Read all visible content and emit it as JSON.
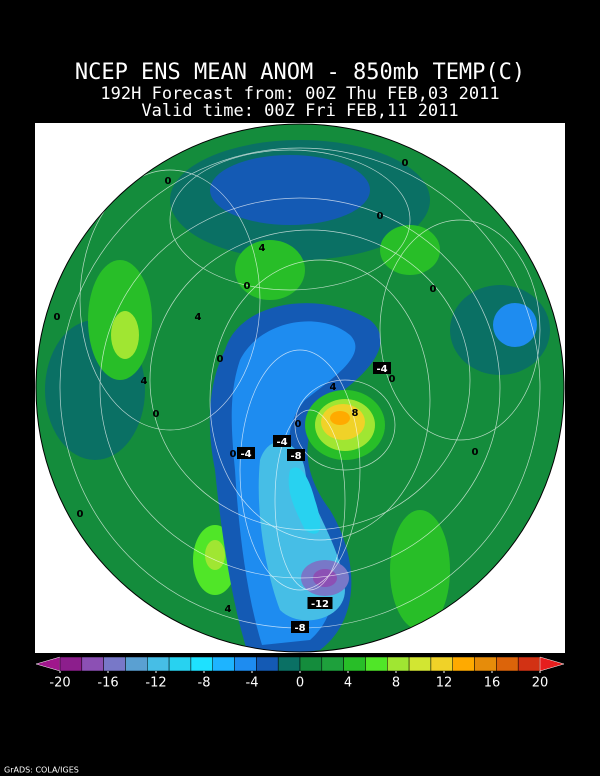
{
  "title": "NCEP ENS MEAN ANOM - 850mb TEMP(C)",
  "subtitle": "192H Forecast from: 00Z Thu FEB,03 2011",
  "valid_time": "Valid time: 00Z Fri FEB,11 2011",
  "contour_labels": [
    "0",
    "0",
    "0",
    "4",
    "0",
    "0",
    "0",
    "4",
    "0",
    "4",
    "-4",
    "0",
    "4",
    "0",
    "8",
    "0",
    "-4",
    "0",
    "-4",
    "-8",
    "0",
    "0",
    "4",
    "-12",
    "-8"
  ],
  "colorbar": {
    "labels": [
      -20,
      -16,
      -12,
      -8,
      -4,
      0,
      4,
      8,
      12,
      16,
      20
    ],
    "colors": [
      "#a0168c",
      "#8c1e8c",
      "#8c50b4",
      "#7878c8",
      "#5aa0d2",
      "#46bee6",
      "#28d2f0",
      "#1ee1ff",
      "#1eb4ff",
      "#1e8cf0",
      "#145ab4",
      "#0a7064",
      "#148c3c",
      "#1ea03c",
      "#28be28",
      "#50e628",
      "#a0e632",
      "#d2e632",
      "#f0d228",
      "#ffaa00",
      "#e68c0a",
      "#dc640a",
      "#d23214",
      "#e61e1e"
    ]
  },
  "footer": "GrADS: COLA/IGES"
}
